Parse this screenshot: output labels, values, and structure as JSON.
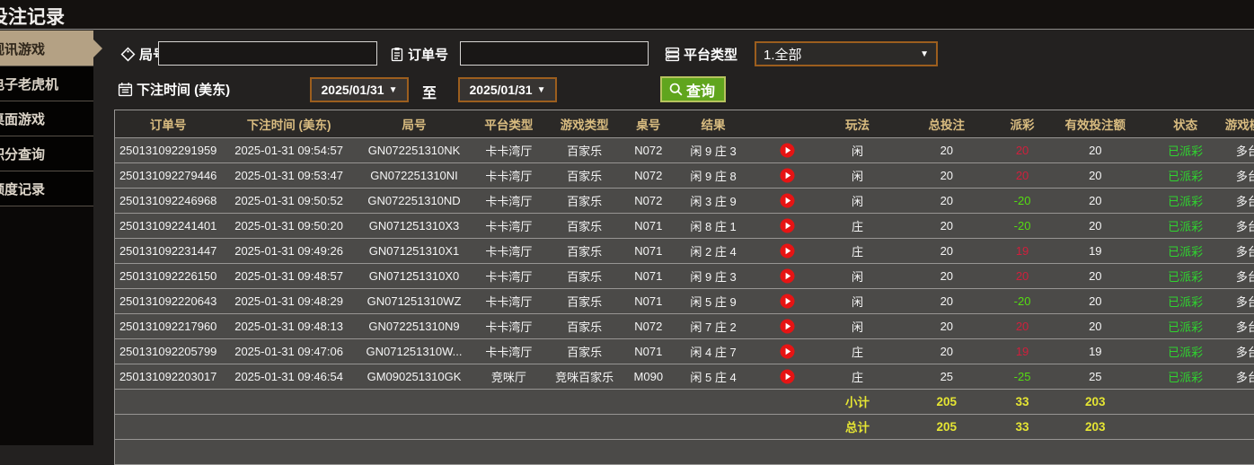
{
  "page": {
    "title": "投注记录"
  },
  "sidebar": {
    "items": [
      {
        "label": "视讯游戏",
        "active": true
      },
      {
        "label": "电子老虎机",
        "active": false
      },
      {
        "label": "桌面游戏",
        "active": false
      },
      {
        "label": "积分查询",
        "active": false
      },
      {
        "label": "额度记录",
        "active": false
      }
    ]
  },
  "filters": {
    "round_label": "局号",
    "round_value": "",
    "order_label": "订单号",
    "order_value": "",
    "platform_label": "平台类型",
    "platform_selected": "1.全部",
    "time_label": "下注时间 (美东)",
    "date_from": "2025/01/31",
    "to_label": "至",
    "date_to": "2025/01/31",
    "search_label": "查询"
  },
  "table": {
    "headers": [
      "订单号",
      "下注时间 (美东)",
      "局号",
      "平台类型",
      "游戏类型",
      "桌号",
      "结果",
      "",
      "玩法",
      "总投注",
      "派彩",
      "有效投注额",
      "状态",
      "游戏模式"
    ],
    "rows": [
      {
        "order_no": "250131092291959",
        "bet_time": "2025-01-31 09:54:57",
        "round_no": "GN072251310NK",
        "platform": "卡卡湾厅",
        "game_type": "百家乐",
        "table_no": "N072",
        "result": "闲 9 庄 3",
        "play_type": "闲",
        "total_bet": "20",
        "payout": "20",
        "valid_bet": "20",
        "status": "已派彩",
        "mode": "多台"
      },
      {
        "order_no": "250131092279446",
        "bet_time": "2025-01-31 09:53:47",
        "round_no": "GN072251310NI",
        "platform": "卡卡湾厅",
        "game_type": "百家乐",
        "table_no": "N072",
        "result": "闲 9 庄 8",
        "play_type": "闲",
        "total_bet": "20",
        "payout": "20",
        "valid_bet": "20",
        "status": "已派彩",
        "mode": "多台"
      },
      {
        "order_no": "250131092246968",
        "bet_time": "2025-01-31 09:50:52",
        "round_no": "GN072251310ND",
        "platform": "卡卡湾厅",
        "game_type": "百家乐",
        "table_no": "N072",
        "result": "闲 3 庄 9",
        "play_type": "闲",
        "total_bet": "20",
        "payout": "-20",
        "valid_bet": "20",
        "status": "已派彩",
        "mode": "多台"
      },
      {
        "order_no": "250131092241401",
        "bet_time": "2025-01-31 09:50:20",
        "round_no": "GN071251310X3",
        "platform": "卡卡湾厅",
        "game_type": "百家乐",
        "table_no": "N071",
        "result": "闲 8 庄 1",
        "play_type": "庄",
        "total_bet": "20",
        "payout": "-20",
        "valid_bet": "20",
        "status": "已派彩",
        "mode": "多台"
      },
      {
        "order_no": "250131092231447",
        "bet_time": "2025-01-31 09:49:26",
        "round_no": "GN071251310X1",
        "platform": "卡卡湾厅",
        "game_type": "百家乐",
        "table_no": "N071",
        "result": "闲 2 庄 4",
        "play_type": "庄",
        "total_bet": "20",
        "payout": "19",
        "valid_bet": "19",
        "status": "已派彩",
        "mode": "多台"
      },
      {
        "order_no": "250131092226150",
        "bet_time": "2025-01-31 09:48:57",
        "round_no": "GN071251310X0",
        "platform": "卡卡湾厅",
        "game_type": "百家乐",
        "table_no": "N071",
        "result": "闲 9 庄 3",
        "play_type": "闲",
        "total_bet": "20",
        "payout": "20",
        "valid_bet": "20",
        "status": "已派彩",
        "mode": "多台"
      },
      {
        "order_no": "250131092220643",
        "bet_time": "2025-01-31 09:48:29",
        "round_no": "GN071251310WZ",
        "platform": "卡卡湾厅",
        "game_type": "百家乐",
        "table_no": "N071",
        "result": "闲 5 庄 9",
        "play_type": "闲",
        "total_bet": "20",
        "payout": "-20",
        "valid_bet": "20",
        "status": "已派彩",
        "mode": "多台"
      },
      {
        "order_no": "250131092217960",
        "bet_time": "2025-01-31 09:48:13",
        "round_no": "GN072251310N9",
        "platform": "卡卡湾厅",
        "game_type": "百家乐",
        "table_no": "N072",
        "result": "闲 7 庄 2",
        "play_type": "闲",
        "total_bet": "20",
        "payout": "20",
        "valid_bet": "20",
        "status": "已派彩",
        "mode": "多台"
      },
      {
        "order_no": "250131092205799",
        "bet_time": "2025-01-31 09:47:06",
        "round_no": "GN071251310W...",
        "platform": "卡卡湾厅",
        "game_type": "百家乐",
        "table_no": "N071",
        "result": "闲 4 庄 7",
        "play_type": "庄",
        "total_bet": "20",
        "payout": "19",
        "valid_bet": "19",
        "status": "已派彩",
        "mode": "多台"
      },
      {
        "order_no": "250131092203017",
        "bet_time": "2025-01-31 09:46:54",
        "round_no": "GM090251310GK",
        "platform": "竞咪厅",
        "game_type": "竞咪百家乐",
        "table_no": "M090",
        "result": "闲 5 庄 4",
        "play_type": "庄",
        "total_bet": "25",
        "payout": "-25",
        "valid_bet": "25",
        "status": "已派彩",
        "mode": "多台"
      }
    ],
    "subtotal": {
      "label": "小计",
      "total_bet": "205",
      "payout": "33",
      "valid_bet": "203"
    },
    "grand_total": {
      "label": "总计",
      "total_bet": "205",
      "payout": "33",
      "valid_bet": "203"
    }
  },
  "colors": {
    "accent_tan": "#b4a184",
    "header_gold": "#d9bc80",
    "positive_red": "#d01f3c",
    "negative_green": "#55dd11",
    "status_green": "#2fd32f",
    "total_yellow": "#e5e533",
    "button_green": "#60a51e",
    "border_orange": "#9c5e1e",
    "play_red": "#e61414"
  }
}
